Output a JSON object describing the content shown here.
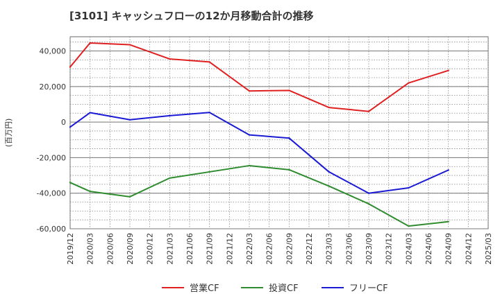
{
  "chart_data": {
    "type": "line",
    "title": "[3101]  キャッシュフローの12か月移動合計の推移",
    "ylabel": "(百万円)",
    "xlabel": "",
    "ylim": [
      -60000,
      48000
    ],
    "yticks": [
      40000,
      20000,
      0,
      -20000,
      -40000,
      -60000
    ],
    "ytick_labels": [
      "40,000",
      "20,000",
      "0",
      "-20,000",
      "-40,000",
      "-60,000"
    ],
    "categories": [
      "2019/12",
      "2020/03",
      "2020/06",
      "2020/09",
      "2020/12",
      "2021/03",
      "2021/06",
      "2021/09",
      "2021/12",
      "2022/03",
      "2022/06",
      "2022/09",
      "2022/12",
      "2023/03",
      "2023/06",
      "2023/09",
      "2023/12",
      "2024/03",
      "2024/06",
      "2024/09",
      "2024/12",
      "2025/03"
    ],
    "grid": true,
    "legend": "bottom",
    "series": [
      {
        "name": "営業CF",
        "color": "#e02020",
        "values": [
          31000,
          44500,
          null,
          43500,
          null,
          35500,
          null,
          33800,
          null,
          17500,
          null,
          17800,
          null,
          8200,
          null,
          6000,
          null,
          22000,
          null,
          29000,
          null,
          null
        ]
      },
      {
        "name": "投資CF",
        "color": "#2e8b2e",
        "values": [
          -34000,
          -39000,
          null,
          -42000,
          null,
          -31500,
          null,
          -28000,
          null,
          -24500,
          null,
          -26800,
          null,
          -36000,
          null,
          -46000,
          null,
          -58500,
          null,
          -56000,
          null,
          null
        ]
      },
      {
        "name": "フリーCF",
        "color": "#1a1ad4",
        "values": [
          -2800,
          5300,
          null,
          1300,
          null,
          3600,
          null,
          5400,
          null,
          -7200,
          null,
          -9000,
          null,
          -28000,
          null,
          -40000,
          null,
          -37000,
          null,
          -27000,
          null,
          null
        ]
      }
    ]
  }
}
